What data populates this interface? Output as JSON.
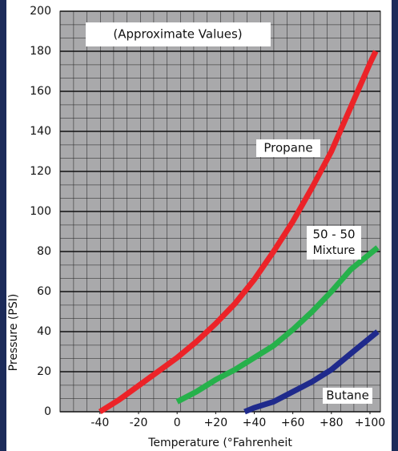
{
  "chart_data": {
    "type": "line",
    "x_label": "Temperature (°Fahrenheit",
    "y_label": "Pressure (PSI)",
    "annotations": [
      "(Approximate Values)",
      "Propane",
      "50 - 50",
      "Mixture",
      "Butane"
    ],
    "xlim": [
      -60.7,
      105.4
    ],
    "xticks": [
      -40,
      -20,
      0,
      {
        "value": 20,
        "label": "+20"
      },
      {
        "value": 40,
        "label": "+40"
      },
      {
        "value": 60,
        "label": "+60"
      },
      {
        "value": 80,
        "label": "+80"
      },
      {
        "value": 100,
        "label": "+100"
      }
    ],
    "ylim": [
      0,
      200
    ],
    "yticks": [
      0,
      20,
      40,
      60,
      80,
      100,
      120,
      140,
      160,
      180,
      200
    ],
    "grid": true,
    "series": [
      {
        "name": "Propane",
        "color": "#ec2328",
        "x": [
          -40,
          -30,
          -20,
          -10,
          0,
          10,
          20,
          30,
          40,
          50,
          60,
          70,
          80,
          90,
          100,
          103
        ],
        "values": [
          0,
          6,
          13,
          20,
          27,
          35,
          44,
          54,
          66,
          80,
          95,
          112,
          130,
          152,
          174,
          180
        ]
      },
      {
        "name": "50 - 50 Mixture",
        "color": "#26b14b",
        "x": [
          0,
          10,
          20,
          30,
          40,
          50,
          60,
          70,
          80,
          90,
          104
        ],
        "values": [
          5,
          10,
          16,
          21,
          27,
          33,
          41,
          50,
          60,
          71,
          82
        ]
      },
      {
        "name": "Butane",
        "color": "#1f2a8c",
        "x": [
          35,
          40,
          50,
          60,
          70,
          80,
          90,
          104
        ],
        "values": [
          0,
          2,
          5,
          10,
          15,
          21,
          29,
          40
        ]
      }
    ]
  }
}
